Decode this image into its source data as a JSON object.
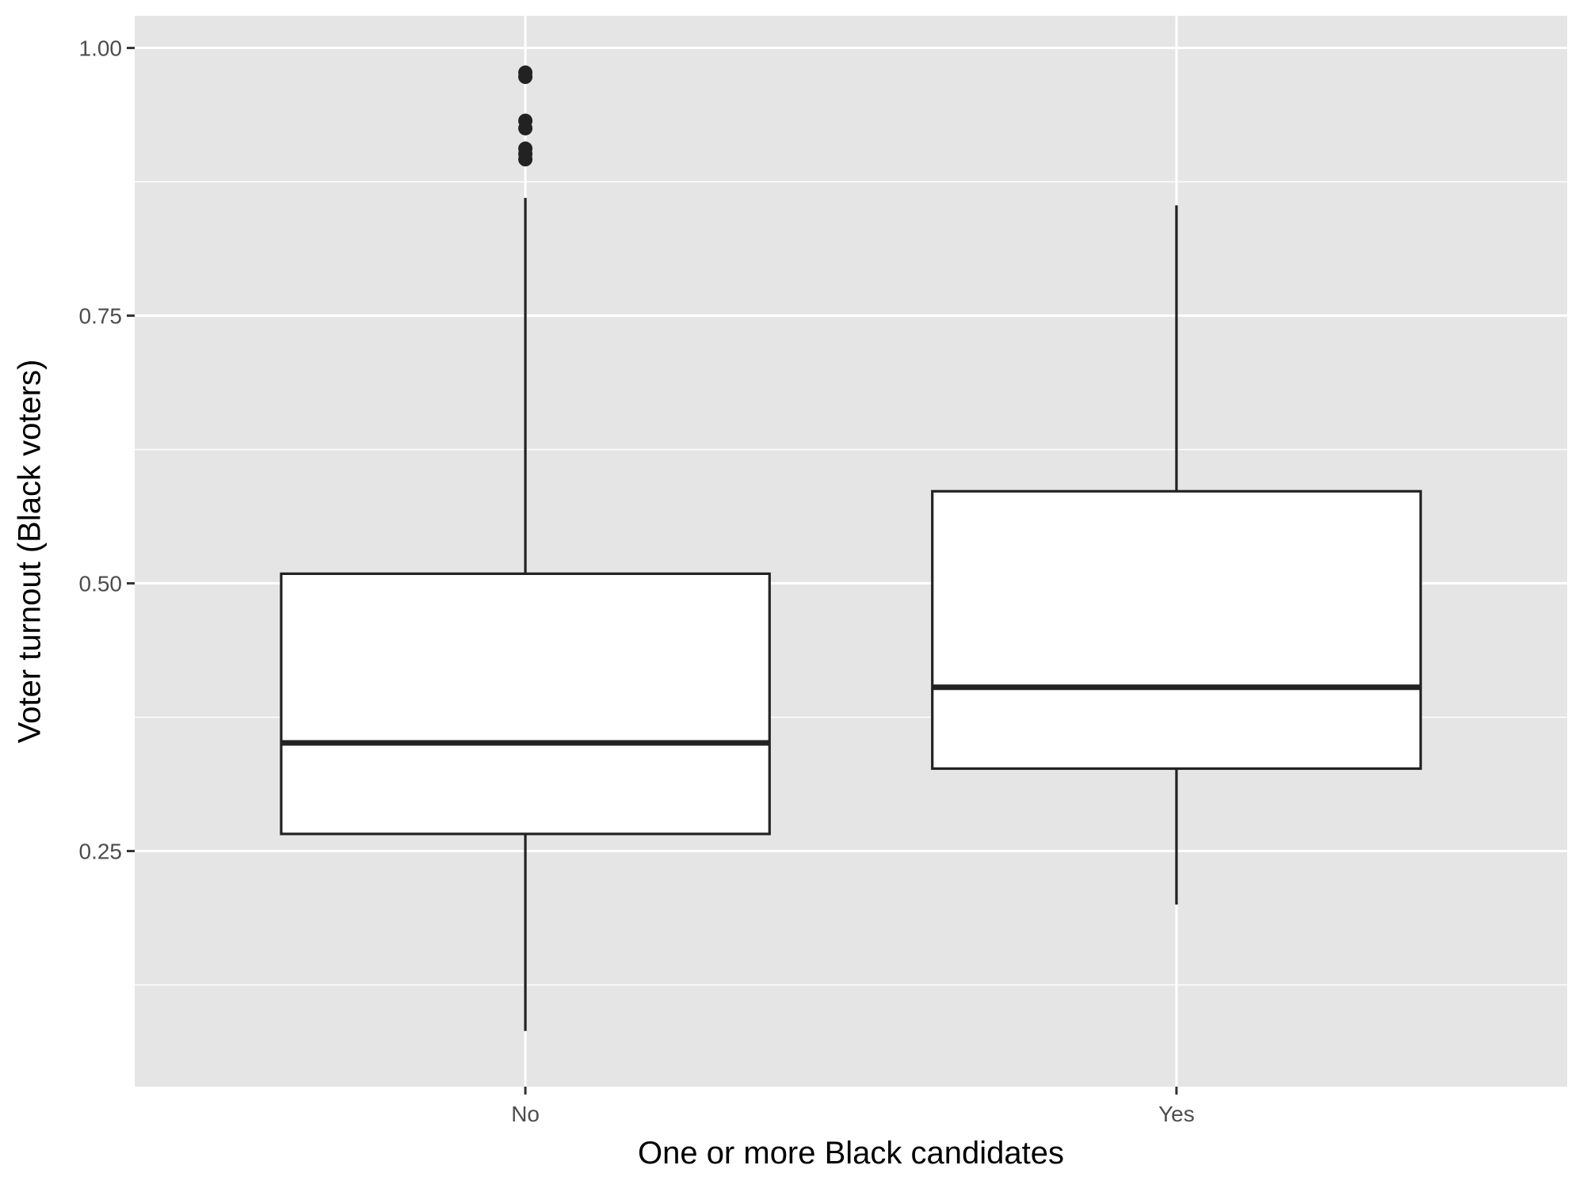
{
  "chart_data": {
    "type": "boxplot",
    "title": "",
    "xlabel": "One or more Black candidates",
    "ylabel": "Voter turnout (Black voters)",
    "categories": [
      "No",
      "Yes"
    ],
    "ylim": [
      0.03,
      1.03
    ],
    "yticks": [
      0.25,
      0.5,
      0.75,
      1.0
    ],
    "ytick_labels": [
      "0.25",
      "0.50",
      "0.75",
      "1.00"
    ],
    "yminor": [
      0.125,
      0.375,
      0.625,
      0.875
    ],
    "grid": true,
    "legend": "none",
    "boxes": [
      {
        "category": "No",
        "whisker_low": 0.082,
        "q1": 0.266,
        "median": 0.351,
        "q3": 0.509,
        "whisker_high": 0.86,
        "outliers": [
          0.896,
          0.901,
          0.906,
          0.925,
          0.932,
          0.973,
          0.977
        ]
      },
      {
        "category": "Yes",
        "whisker_low": 0.2,
        "q1": 0.327,
        "median": 0.403,
        "q3": 0.586,
        "whisker_high": 0.853,
        "outliers": []
      }
    ],
    "colors": {
      "panel": "#e5e5e5",
      "grid": "#ffffff",
      "box_fill": "#ffffff",
      "box_line": "#222222",
      "tick": "#333333"
    }
  }
}
